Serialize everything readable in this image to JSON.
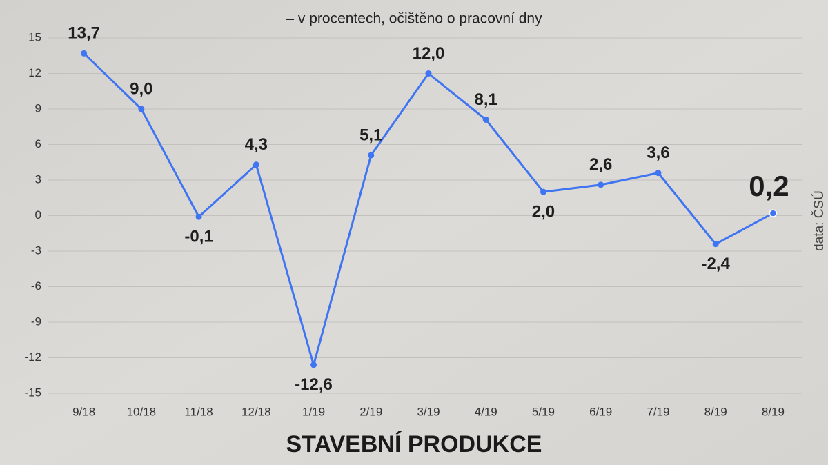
{
  "chart_data": {
    "type": "line",
    "title": "STAVEBNÍ PRODUKCE",
    "subtitle": "– v procentech, očištěno o pracovní dny",
    "source": "data: ČSÚ",
    "categories": [
      "9/18",
      "10/18",
      "11/18",
      "12/18",
      "1/19",
      "2/19",
      "3/19",
      "4/19",
      "5/19",
      "6/19",
      "7/19",
      "8/19",
      "8/19"
    ],
    "series": [
      {
        "color": "#3f74f2",
        "values": [
          13.7,
          9.0,
          -0.1,
          4.3,
          -12.6,
          5.1,
          12.0,
          8.1,
          2.0,
          2.6,
          3.6,
          -2.4,
          0.2
        ],
        "value_labels": [
          "13,7",
          "9,0",
          "-0,1",
          "4,3",
          "-12,6",
          "5,1",
          "12,0",
          "8,1",
          "2,0",
          "2,6",
          "3,6",
          "-2,4",
          "0,2"
        ]
      }
    ],
    "ylim": [
      -15,
      15
    ],
    "yticks": [
      -15,
      -12,
      -9,
      -6,
      -3,
      0,
      3,
      6,
      9,
      12,
      15
    ],
    "grid": true
  }
}
